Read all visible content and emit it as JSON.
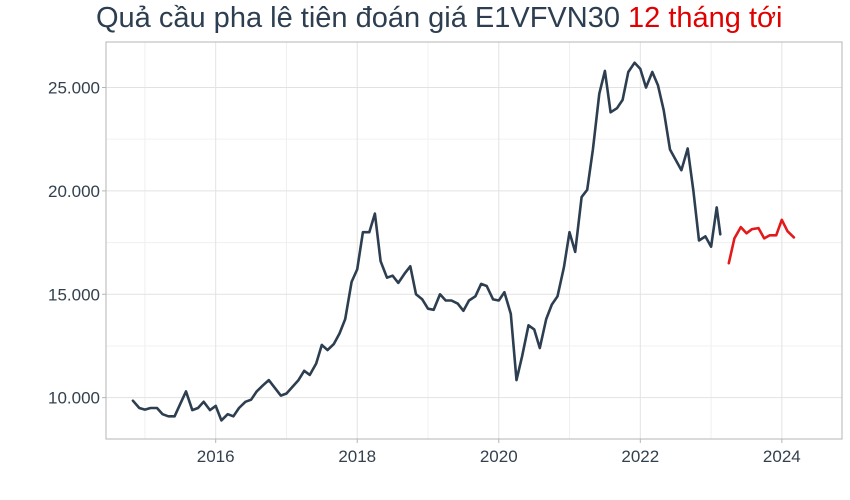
{
  "chart_data": {
    "type": "line",
    "title_prefix": "Quả cầu pha lê tiên đoán giá E1VFVN30",
    "title_highlight": "12 tháng tới",
    "colors": {
      "history": "#2c3e50",
      "forecast": "#e31a1c",
      "title": "#2c3e50",
      "title_highlight": "#e00000"
    },
    "xlim": [
      2014.45,
      2024.85
    ],
    "ylim": [
      8000,
      27200
    ],
    "x_ticks": [
      2016,
      2018,
      2020,
      2022,
      2024
    ],
    "y_ticks": [
      10000,
      15000,
      20000,
      25000
    ],
    "x_tick_labels": [
      "2016",
      "2018",
      "2020",
      "2022",
      "2024"
    ],
    "y_tick_labels": [
      "10.000",
      "15.000",
      "20.000",
      "25.000"
    ],
    "grid": true,
    "series": [
      {
        "role": "history",
        "points": [
          [
            2014.83,
            9850
          ],
          [
            2014.92,
            9500
          ],
          [
            2015.0,
            9420
          ],
          [
            2015.08,
            9500
          ],
          [
            2015.17,
            9500
          ],
          [
            2015.25,
            9200
          ],
          [
            2015.33,
            9100
          ],
          [
            2015.42,
            9100
          ],
          [
            2015.5,
            9700
          ],
          [
            2015.58,
            10300
          ],
          [
            2015.67,
            9400
          ],
          [
            2015.75,
            9500
          ],
          [
            2015.83,
            9800
          ],
          [
            2015.92,
            9400
          ],
          [
            2016.0,
            9600
          ],
          [
            2016.08,
            8900
          ],
          [
            2016.17,
            9200
          ],
          [
            2016.25,
            9100
          ],
          [
            2016.33,
            9500
          ],
          [
            2016.42,
            9800
          ],
          [
            2016.5,
            9900
          ],
          [
            2016.58,
            10300
          ],
          [
            2016.67,
            10600
          ],
          [
            2016.75,
            10850
          ],
          [
            2016.83,
            10500
          ],
          [
            2016.92,
            10100
          ],
          [
            2017.0,
            10200
          ],
          [
            2017.08,
            10500
          ],
          [
            2017.17,
            10850
          ],
          [
            2017.25,
            11300
          ],
          [
            2017.33,
            11100
          ],
          [
            2017.42,
            11650
          ],
          [
            2017.5,
            12550
          ],
          [
            2017.58,
            12300
          ],
          [
            2017.67,
            12600
          ],
          [
            2017.75,
            13100
          ],
          [
            2017.83,
            13800
          ],
          [
            2017.92,
            15600
          ],
          [
            2018.0,
            16200
          ],
          [
            2018.08,
            18000
          ],
          [
            2018.17,
            18000
          ],
          [
            2018.25,
            18900
          ],
          [
            2018.33,
            16600
          ],
          [
            2018.42,
            15800
          ],
          [
            2018.5,
            15900
          ],
          [
            2018.58,
            15550
          ],
          [
            2018.67,
            16000
          ],
          [
            2018.75,
            16350
          ],
          [
            2018.83,
            15000
          ],
          [
            2018.92,
            14750
          ],
          [
            2019.0,
            14300
          ],
          [
            2019.08,
            14250
          ],
          [
            2019.17,
            15000
          ],
          [
            2019.25,
            14700
          ],
          [
            2019.33,
            14700
          ],
          [
            2019.42,
            14550
          ],
          [
            2019.5,
            14200
          ],
          [
            2019.58,
            14700
          ],
          [
            2019.67,
            14900
          ],
          [
            2019.75,
            15500
          ],
          [
            2019.83,
            15400
          ],
          [
            2019.92,
            14750
          ],
          [
            2020.0,
            14700
          ],
          [
            2020.08,
            15100
          ],
          [
            2020.17,
            14050
          ],
          [
            2020.25,
            10850
          ],
          [
            2020.33,
            12000
          ],
          [
            2020.42,
            13500
          ],
          [
            2020.5,
            13300
          ],
          [
            2020.58,
            12400
          ],
          [
            2020.67,
            13800
          ],
          [
            2020.75,
            14500
          ],
          [
            2020.83,
            14900
          ],
          [
            2020.92,
            16300
          ],
          [
            2021.0,
            18000
          ],
          [
            2021.08,
            17050
          ],
          [
            2021.17,
            19700
          ],
          [
            2021.25,
            20050
          ],
          [
            2021.33,
            22000
          ],
          [
            2021.42,
            24700
          ],
          [
            2021.5,
            25800
          ],
          [
            2021.58,
            23800
          ],
          [
            2021.67,
            24000
          ],
          [
            2021.75,
            24400
          ],
          [
            2021.83,
            25750
          ],
          [
            2021.92,
            26200
          ],
          [
            2022.0,
            25900
          ],
          [
            2022.08,
            25000
          ],
          [
            2022.17,
            25750
          ],
          [
            2022.25,
            25100
          ],
          [
            2022.33,
            23900
          ],
          [
            2022.42,
            22000
          ],
          [
            2022.5,
            21500
          ],
          [
            2022.58,
            21000
          ],
          [
            2022.67,
            22050
          ],
          [
            2022.75,
            20000
          ],
          [
            2022.83,
            17600
          ],
          [
            2022.92,
            17800
          ],
          [
            2023.0,
            17300
          ],
          [
            2023.08,
            19200
          ],
          [
            2023.13,
            17900
          ]
        ]
      },
      {
        "role": "forecast",
        "points": [
          [
            2023.25,
            16500
          ],
          [
            2023.33,
            17700
          ],
          [
            2023.42,
            18250
          ],
          [
            2023.5,
            17950
          ],
          [
            2023.58,
            18150
          ],
          [
            2023.67,
            18200
          ],
          [
            2023.75,
            17700
          ],
          [
            2023.83,
            17850
          ],
          [
            2023.92,
            17850
          ],
          [
            2024.0,
            18600
          ],
          [
            2024.08,
            18050
          ],
          [
            2024.17,
            17750
          ]
        ]
      }
    ]
  }
}
